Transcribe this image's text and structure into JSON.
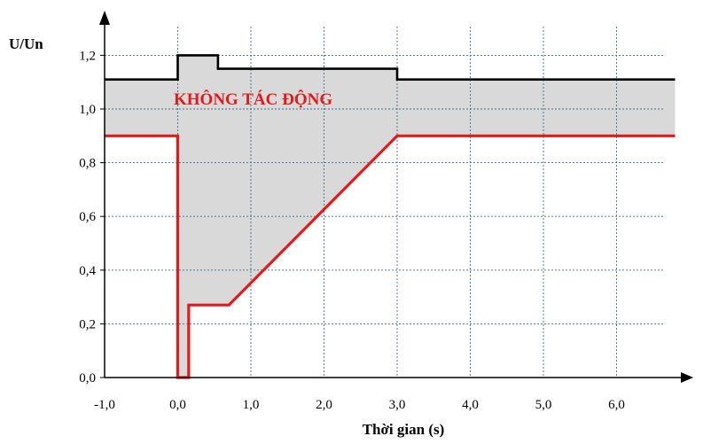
{
  "chart_data": {
    "type": "line",
    "ylabel": "U/Un",
    "xlabel": "Thời gian (s)",
    "xlim": [
      -1.0,
      6.8
    ],
    "ylim": [
      0.0,
      1.3
    ],
    "x_ticks": [
      "-1,0",
      "0,0",
      "1,0",
      "2,0",
      "3,0",
      "4,0",
      "5,0",
      "6,0"
    ],
    "x_tick_values": [
      -1,
      0,
      1,
      2,
      3,
      4,
      5,
      6
    ],
    "y_ticks": [
      "0,0",
      "0,2",
      "0,4",
      "0,6",
      "0,8",
      "1,0",
      "1,2"
    ],
    "y_tick_values": [
      0,
      0.2,
      0.4,
      0.6,
      0.8,
      1.0,
      1.2
    ],
    "grid": true,
    "annotation": {
      "text": "KHÔNG TÁC ĐỘNG",
      "color": "#e01b1b"
    },
    "series": [
      {
        "color": "#000000",
        "x": [
          -1.0,
          0.0,
          0.0,
          0.55,
          0.55,
          3.0,
          3.0,
          6.8
        ],
        "y": [
          1.11,
          1.11,
          1.2,
          1.2,
          1.15,
          1.15,
          1.11,
          1.11
        ]
      },
      {
        "color": "#e01b1b",
        "x": [
          -1.0,
          0.0,
          0.0,
          0.15,
          0.15,
          0.7,
          3.0,
          6.8
        ],
        "y": [
          0.9,
          0.9,
          0.0,
          0.0,
          0.27,
          0.27,
          0.9,
          0.9
        ]
      }
    ],
    "shaded_region_color": "#d9d9d9"
  }
}
